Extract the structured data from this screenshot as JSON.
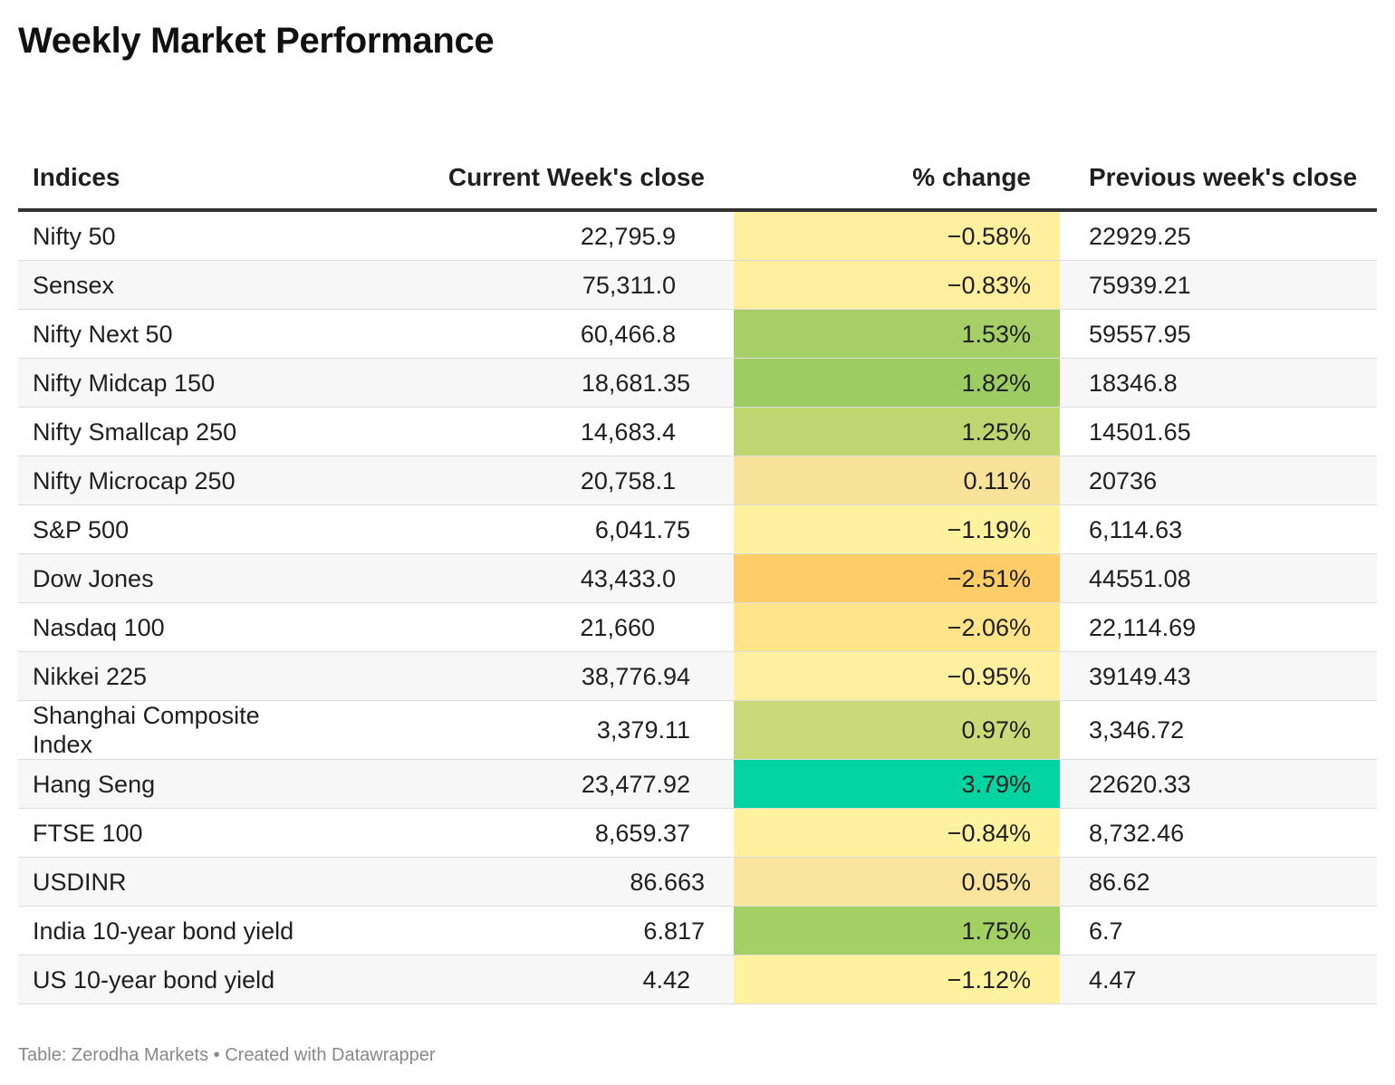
{
  "title": "Weekly Market Performance",
  "footer": "Table: Zerodha Markets • Created with Datawrapper",
  "chart_data": {
    "type": "table",
    "columns": [
      "Indices",
      "Current Week's close",
      "% change",
      "Previous week's close"
    ],
    "rows": [
      {
        "name": "Nifty 50",
        "current": "22,795.9",
        "change": "−0.58%",
        "change_value": -0.58,
        "previous": "22929.25",
        "color": "#fff0a0"
      },
      {
        "name": "Sensex",
        "current": "75,311.0",
        "change": "−0.83%",
        "change_value": -0.83,
        "previous": "75939.21",
        "color": "#ffef9d"
      },
      {
        "name": "Nifty Next 50",
        "current": "60,466.8",
        "change": "1.53%",
        "change_value": 1.53,
        "previous": "59557.95",
        "color": "#a6d067"
      },
      {
        "name": "Nifty Midcap 150",
        "current": "18,681.35",
        "change": "1.82%",
        "change_value": 1.82,
        "previous": "18346.8",
        "color": "#9dcd62"
      },
      {
        "name": "Nifty Smallcap 250",
        "current": "14,683.4",
        "change": "1.25%",
        "change_value": 1.25,
        "previous": "14501.65",
        "color": "#bed670"
      },
      {
        "name": "Nifty Microcap 250",
        "current": "20,758.1",
        "change": "0.11%",
        "change_value": 0.11,
        "previous": "20736",
        "color": "#f9e39b"
      },
      {
        "name": "S&P 500",
        "current": "6,041.75",
        "change": "−1.19%",
        "change_value": -1.19,
        "previous": "6,114.63",
        "color": "#fff29e"
      },
      {
        "name": "Dow Jones",
        "current": "43,433.0",
        "change": "−2.51%",
        "change_value": -2.51,
        "previous": "44551.08",
        "color": "#fecd67"
      },
      {
        "name": "Nasdaq 100",
        "current": "21,660",
        "change": "−2.06%",
        "change_value": -2.06,
        "previous": "22,114.69",
        "color": "#ffe489"
      },
      {
        "name": "Nikkei 225",
        "current": "38,776.94",
        "change": "−0.95%",
        "change_value": -0.95,
        "previous": "39149.43",
        "color": "#fff0a0"
      },
      {
        "name": "Shanghai Composite Index",
        "current": "3,379.11",
        "change": "0.97%",
        "change_value": 0.97,
        "previous": "3,346.72",
        "color": "#cbda79"
      },
      {
        "name": "Hang Seng",
        "current": "23,477.92",
        "change": "3.79%",
        "change_value": 3.79,
        "previous": "22620.33",
        "color": "#03d4a2"
      },
      {
        "name": "FTSE 100",
        "current": "8,659.37",
        "change": "−0.84%",
        "change_value": -0.84,
        "previous": "8,732.46",
        "color": "#fff29e"
      },
      {
        "name": "USDINR",
        "current": "86.663",
        "change": "0.05%",
        "change_value": 0.05,
        "previous": "86.62",
        "color": "#fbe49e"
      },
      {
        "name": "India 10-year bond yield",
        "current": "6.817",
        "change": "1.75%",
        "change_value": 1.75,
        "previous": "6.7",
        "color": "#a2d063"
      },
      {
        "name": "US 10-year bond yield",
        "current": "4.42",
        "change": "−1.12%",
        "change_value": -1.12,
        "previous": "4.47",
        "color": "#fff29e"
      }
    ]
  }
}
